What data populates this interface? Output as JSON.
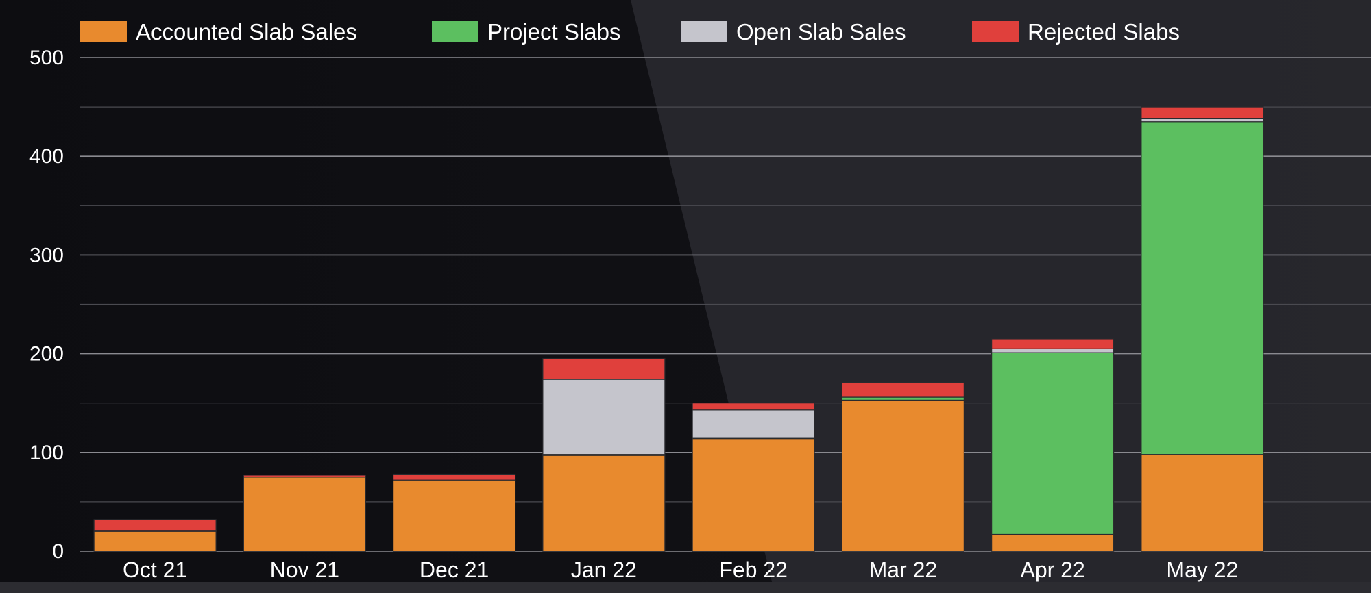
{
  "chart_data": {
    "type": "bar",
    "stacked": true,
    "categories": [
      "Oct 21",
      "Nov 21",
      "Dec 21",
      "Jan 22",
      "Feb 22",
      "Mar 22",
      "Apr 22",
      "May 22"
    ],
    "series": [
      {
        "name": "Accounted Slab Sales",
        "color": "#e88a2e",
        "values": [
          20,
          75,
          72,
          97,
          114,
          153,
          17,
          98
        ]
      },
      {
        "name": "Project Slabs",
        "color": "#5cbf60",
        "values": [
          0,
          0,
          0,
          1,
          1,
          3,
          184,
          337
        ]
      },
      {
        "name": "Open Slab Sales",
        "color": "#c5c5cc",
        "values": [
          1,
          0,
          0,
          76,
          28,
          0,
          4,
          3
        ]
      },
      {
        "name": "Rejected Slabs",
        "color": "#e0403c",
        "values": [
          11,
          2,
          6,
          21,
          7,
          15,
          10,
          12
        ]
      }
    ],
    "ylim": [
      0,
      500
    ],
    "yticks": [
      0,
      100,
      200,
      300,
      400,
      500
    ],
    "ytick_labels": [
      "0",
      "100",
      "200",
      "300",
      "400",
      "500"
    ],
    "minor_gridlines": true,
    "legend_position": "top"
  }
}
